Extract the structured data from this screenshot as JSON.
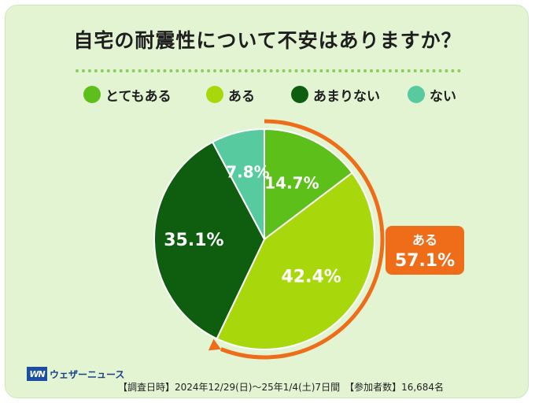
{
  "header": {
    "title": "自宅の耐震性について不安はありますか？"
  },
  "chart_data": {
    "type": "pie",
    "title": "自宅の耐震性について不安はありますか？",
    "categories": [
      "とてもある",
      "ある",
      "あまりない",
      "ない"
    ],
    "values": [
      14.7,
      42.4,
      35.1,
      7.8
    ],
    "value_labels": [
      "14.7%",
      "42.4%",
      "35.1%",
      "7.8%"
    ],
    "colors": [
      "#5dc01a",
      "#a8d80c",
      "#0f5e0f",
      "#57caa0"
    ],
    "legend_position": "top",
    "callout": {
      "label": "ある",
      "value": "57.1%",
      "color": "#ef6c18"
    }
  },
  "footer": {
    "logo_text": "ウェザーニュース",
    "logo_mark": "WN",
    "note": "【調査日時】2024年12/29(日)～25年1/4(土)7日間　【参加者数】16,684名"
  }
}
